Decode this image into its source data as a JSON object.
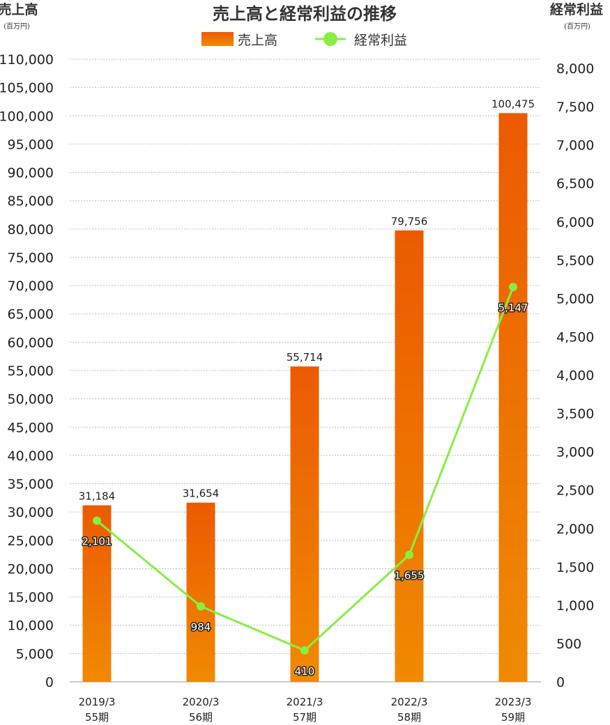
{
  "chart_data": {
    "type": "bar+line",
    "title": "売上高と経常利益の推移",
    "left_axis": {
      "title": "売上高",
      "unit": "(百万円)",
      "ylim": [
        0,
        110000
      ],
      "step": 5000
    },
    "right_axis": {
      "title": "経常利益",
      "unit": "(百万円)",
      "ylim": [
        0,
        8000
      ],
      "step": 500
    },
    "categories": [
      {
        "date": "2019/3",
        "period": "55期"
      },
      {
        "date": "2020/3",
        "period": "56期"
      },
      {
        "date": "2021/3",
        "period": "57期"
      },
      {
        "date": "2022/3",
        "period": "58期"
      },
      {
        "date": "2023/3",
        "period": "59期"
      }
    ],
    "series": [
      {
        "name": "売上高",
        "kind": "bar",
        "axis": "left",
        "color": "#ec5a00",
        "color_light": "#f08a00",
        "values": [
          31184,
          31654,
          55714,
          79756,
          100475
        ]
      },
      {
        "name": "経常利益",
        "kind": "line",
        "axis": "right",
        "color": "#88ee44",
        "values": [
          2101,
          984,
          410,
          1655,
          5147
        ]
      }
    ],
    "grid": true,
    "legend": "top-center"
  }
}
